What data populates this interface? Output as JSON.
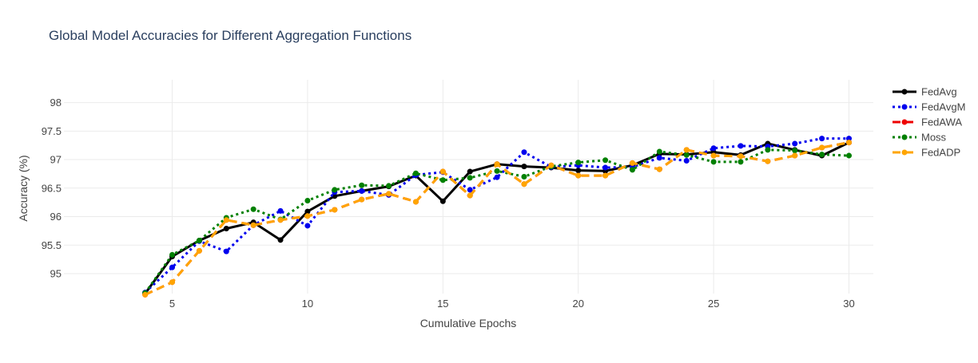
{
  "chart_data": {
    "type": "line",
    "title": "Global Model Accuracies for Different Aggregation Functions",
    "xlabel": "Cumulative Epochs",
    "ylabel": "Accuracy (%)",
    "xlim": [
      1,
      30.9
    ],
    "ylim": [
      94.65,
      98.4
    ],
    "xticks": [
      5,
      10,
      15,
      20,
      25,
      30
    ],
    "yticks": [
      95,
      95.5,
      96,
      96.5,
      97,
      97.5,
      98
    ],
    "grid": true,
    "legend_position": "top-right",
    "x": [
      4,
      5,
      6,
      7,
      8,
      9,
      10,
      11,
      12,
      13,
      14,
      15,
      16,
      17,
      18,
      19,
      20,
      21,
      22,
      23,
      24,
      25,
      26,
      27,
      28,
      29,
      30
    ],
    "series": [
      {
        "name": "FedAvg",
        "color": "#000000",
        "dash": "solid",
        "values": [
          94.65,
          95.3,
          95.58,
          95.79,
          95.9,
          95.59,
          96.09,
          96.36,
          96.45,
          96.53,
          96.72,
          96.27,
          96.79,
          96.92,
          96.88,
          96.86,
          96.81,
          96.8,
          96.9,
          97.1,
          97.09,
          97.13,
          97.08,
          97.28,
          97.17,
          97.07,
          97.3
        ]
      },
      {
        "name": "FedAvgM",
        "color": "#0000ee",
        "dash": "dot",
        "values": [
          94.67,
          95.11,
          95.57,
          95.39,
          95.85,
          96.1,
          95.84,
          96.43,
          96.45,
          96.38,
          96.73,
          96.78,
          96.47,
          96.69,
          97.13,
          96.87,
          96.9,
          96.86,
          96.87,
          97.03,
          96.98,
          97.2,
          97.24,
          97.23,
          97.28,
          97.37,
          97.37
        ]
      },
      {
        "name": "FedAWA",
        "color": "#ee0000",
        "dash": "dash",
        "values": [
          94.63,
          94.85,
          95.4,
          95.94,
          95.85,
          95.94,
          96.01,
          96.12,
          96.3,
          96.4,
          96.26,
          96.79,
          96.37,
          96.92,
          96.57,
          96.9,
          96.72,
          96.72,
          96.94,
          96.83,
          97.17,
          97.07,
          97.06,
          96.97,
          97.07,
          97.21,
          97.3
        ]
      },
      {
        "name": "Moss",
        "color": "#008000",
        "dash": "dot",
        "values": [
          94.66,
          95.33,
          95.58,
          95.98,
          96.13,
          95.95,
          96.28,
          96.47,
          96.55,
          96.54,
          96.76,
          96.64,
          96.68,
          96.8,
          96.7,
          96.88,
          96.95,
          96.99,
          96.82,
          97.14,
          97.08,
          96.96,
          96.96,
          97.17,
          97.16,
          97.09,
          97.07
        ]
      },
      {
        "name": "FedADP",
        "color": "#ffa500",
        "dash": "dash",
        "values": [
          94.63,
          94.85,
          95.4,
          95.94,
          95.85,
          95.94,
          96.01,
          96.12,
          96.3,
          96.4,
          96.26,
          96.79,
          96.37,
          96.92,
          96.57,
          96.9,
          96.72,
          96.72,
          96.94,
          96.83,
          97.17,
          97.07,
          97.06,
          96.97,
          97.07,
          97.21,
          97.3
        ]
      }
    ]
  }
}
